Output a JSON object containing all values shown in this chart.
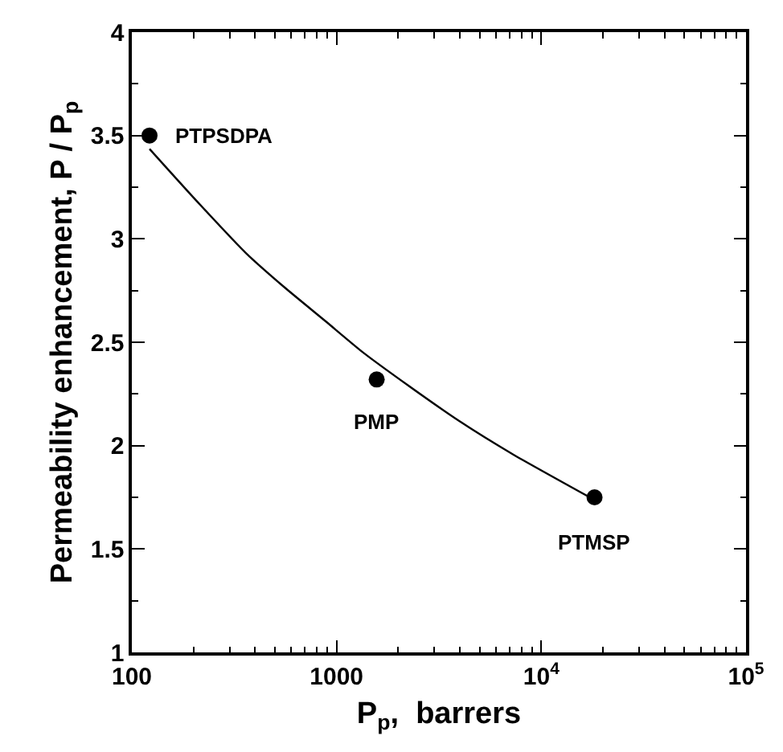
{
  "chart_data": {
    "type": "scatter",
    "xlabel": "P$_{p}$,  barrers",
    "ylabel": "Permeability enhancement, P / P$_{p}$",
    "log": "x",
    "grid": false,
    "xlim": [
      100,
      100000
    ],
    "xticks": [
      100,
      1000,
      {
        "value": 10000,
        "label": "10$^{4}$"
      },
      {
        "value": 100000,
        "label": "10$^{5}$"
      }
    ],
    "ylim": [
      1,
      4
    ],
    "yticks": [
      1,
      1.5,
      2,
      2.5,
      3,
      3.5,
      4
    ],
    "series": [
      {
        "marker": "circle",
        "color": "#000000",
        "x": [
          122,
          1570,
          18200
        ],
        "values": [
          3.5,
          2.32,
          1.75
        ]
      },
      {
        "type": "line",
        "line_style": "solid",
        "marker": "none",
        "color": "#000000",
        "x": [
          122,
          200,
          362,
          550,
          888,
          1350,
          2245,
          3960,
          7210,
          17700
        ],
        "values": [
          3.435,
          3.2,
          2.93,
          2.77,
          2.6,
          2.45,
          2.29,
          2.12,
          1.96,
          1.744
        ]
      }
    ],
    "annotations": [
      {
        "text": "PTPSDPA",
        "x": 122,
        "y": 3.5
      },
      {
        "text": "PMP",
        "x": 1570,
        "y": 2.32
      },
      {
        "text": "PTMSP",
        "x": 18200,
        "y": 1.75
      }
    ]
  }
}
